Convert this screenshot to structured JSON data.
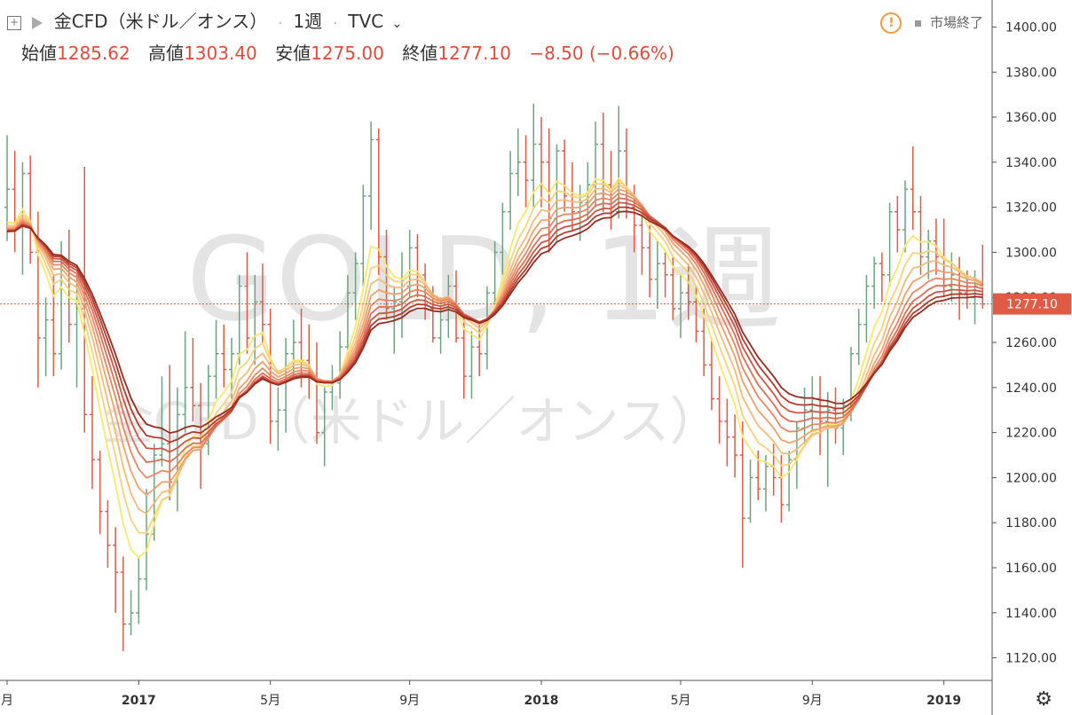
{
  "header": {
    "symbol_name": "金CFD（米ドル／オンス）",
    "interval": "1週",
    "exchange": "TVC",
    "status": "市場終了",
    "add_icon": "plus-square-icon",
    "flag_icon": "flag-icon",
    "warning_icon": "warning-icon",
    "settings_icon": "gear-icon"
  },
  "ohlc": {
    "open_label": "始値",
    "open": "1285.62",
    "high_label": "高値",
    "high": "1303.40",
    "low_label": "安値",
    "low": "1275.00",
    "close_label": "終値",
    "close": "1277.10",
    "change": "−8.50 (−0.66%)"
  },
  "watermark": {
    "line1": "GOLD, 1週",
    "line2": "金CFD（米ドル／オンス）"
  },
  "colors": {
    "up": "#6aa57f",
    "down": "#e05a45",
    "ohlc_text": "#e04b3a",
    "price_label_bg": "#e05a45",
    "ribbon": [
      "#fbe66e",
      "#f8d27a",
      "#f5bb78",
      "#f0a06c",
      "#ea8763",
      "#e06d55",
      "#cf5442",
      "#b43a2c",
      "#9a2a20"
    ]
  },
  "chart_data": {
    "type": "line",
    "title": "金CFD（米ドル／オンス）",
    "series_type": "ohlc-bars with moving-average ribbon",
    "ylim": [
      1110,
      1412
    ],
    "y_ticks": [
      1120,
      1140,
      1160,
      1180,
      1200,
      1220,
      1240,
      1260,
      1280,
      1300,
      1320,
      1340,
      1360,
      1380,
      1400
    ],
    "y_tick_labels": [
      "1120.00",
      "1140.00",
      "1160.00",
      "1180.00",
      "1200.00",
      "1220.00",
      "1240.00",
      "1260.00",
      "1280.00",
      "1300.00",
      "1320.00",
      "1340.00",
      "1360.00",
      "1380.00",
      "1400.00"
    ],
    "x_ticks": [
      {
        "i": 0,
        "label": "月",
        "bold": false
      },
      {
        "i": 17,
        "label": "2017",
        "bold": true
      },
      {
        "i": 34,
        "label": "5月",
        "bold": false
      },
      {
        "i": 52,
        "label": "9月",
        "bold": false
      },
      {
        "i": 69,
        "label": "2018",
        "bold": true
      },
      {
        "i": 87,
        "label": "5月",
        "bold": false
      },
      {
        "i": 104,
        "label": "9月",
        "bold": false
      },
      {
        "i": 121,
        "label": "2019",
        "bold": true
      },
      {
        "i": 139,
        "label": "5月",
        "bold": false
      }
    ],
    "last_price": 1277.1,
    "last_price_label": "1277.10",
    "bars": [
      [
        1320,
        1352,
        1305,
        1328
      ],
      [
        1328,
        1345,
        1300,
        1312
      ],
      [
        1312,
        1340,
        1290,
        1335
      ],
      [
        1335,
        1343,
        1295,
        1300
      ],
      [
        1300,
        1318,
        1240,
        1262
      ],
      [
        1262,
        1280,
        1245,
        1270
      ],
      [
        1270,
        1290,
        1245,
        1255
      ],
      [
        1255,
        1305,
        1248,
        1295
      ],
      [
        1295,
        1310,
        1260,
        1268
      ],
      [
        1268,
        1290,
        1240,
        1275
      ],
      [
        1275,
        1338,
        1220,
        1228
      ],
      [
        1228,
        1245,
        1195,
        1208
      ],
      [
        1208,
        1212,
        1175,
        1185
      ],
      [
        1185,
        1190,
        1160,
        1170
      ],
      [
        1170,
        1178,
        1140,
        1158
      ],
      [
        1158,
        1165,
        1123,
        1135
      ],
      [
        1135,
        1150,
        1130,
        1140
      ],
      [
        1140,
        1165,
        1135,
        1155
      ],
      [
        1155,
        1195,
        1150,
        1175
      ],
      [
        1175,
        1215,
        1172,
        1210
      ],
      [
        1210,
        1245,
        1205,
        1215
      ],
      [
        1215,
        1250,
        1190,
        1198
      ],
      [
        1198,
        1240,
        1185,
        1228
      ],
      [
        1228,
        1265,
        1220,
        1240
      ],
      [
        1240,
        1262,
        1225,
        1232
      ],
      [
        1232,
        1242,
        1195,
        1215
      ],
      [
        1215,
        1250,
        1210,
        1245
      ],
      [
        1245,
        1270,
        1235,
        1255
      ],
      [
        1255,
        1268,
        1240,
        1248
      ],
      [
        1248,
        1262,
        1235,
        1255
      ],
      [
        1255,
        1290,
        1250,
        1285
      ],
      [
        1285,
        1300,
        1255,
        1262
      ],
      [
        1262,
        1290,
        1250,
        1278
      ],
      [
        1278,
        1295,
        1260,
        1268
      ],
      [
        1268,
        1275,
        1215,
        1225
      ],
      [
        1225,
        1240,
        1212,
        1230
      ],
      [
        1230,
        1262,
        1220,
        1255
      ],
      [
        1255,
        1270,
        1245,
        1260
      ],
      [
        1260,
        1275,
        1240,
        1252
      ],
      [
        1252,
        1268,
        1235,
        1245
      ],
      [
        1245,
        1260,
        1215,
        1220
      ],
      [
        1220,
        1240,
        1205,
        1238
      ],
      [
        1238,
        1250,
        1230,
        1242
      ],
      [
        1242,
        1265,
        1235,
        1258
      ],
      [
        1258,
        1290,
        1250,
        1282
      ],
      [
        1282,
        1300,
        1270,
        1295
      ],
      [
        1295,
        1330,
        1285,
        1325
      ],
      [
        1325,
        1358,
        1310,
        1350
      ],
      [
        1350,
        1355,
        1290,
        1298
      ],
      [
        1298,
        1310,
        1270,
        1275
      ],
      [
        1275,
        1285,
        1255,
        1278
      ],
      [
        1278,
        1300,
        1262,
        1285
      ],
      [
        1285,
        1310,
        1280,
        1302
      ],
      [
        1302,
        1308,
        1280,
        1290
      ],
      [
        1290,
        1295,
        1270,
        1275
      ],
      [
        1275,
        1285,
        1260,
        1262
      ],
      [
        1262,
        1280,
        1255,
        1270
      ],
      [
        1270,
        1290,
        1262,
        1285
      ],
      [
        1285,
        1292,
        1260,
        1262
      ],
      [
        1262,
        1272,
        1235,
        1245
      ],
      [
        1245,
        1265,
        1235,
        1258
      ],
      [
        1258,
        1268,
        1245,
        1255
      ],
      [
        1255,
        1285,
        1248,
        1282
      ],
      [
        1282,
        1305,
        1275,
        1300
      ],
      [
        1300,
        1322,
        1290,
        1318
      ],
      [
        1318,
        1345,
        1310,
        1335
      ],
      [
        1335,
        1355,
        1325,
        1340
      ],
      [
        1340,
        1352,
        1320,
        1332
      ],
      [
        1332,
        1366,
        1320,
        1348
      ],
      [
        1348,
        1360,
        1320,
        1340
      ],
      [
        1340,
        1355,
        1300,
        1315
      ],
      [
        1315,
        1348,
        1305,
        1345
      ],
      [
        1345,
        1350,
        1318,
        1325
      ],
      [
        1325,
        1340,
        1310,
        1318
      ],
      [
        1318,
        1330,
        1305,
        1322
      ],
      [
        1322,
        1340,
        1315,
        1330
      ],
      [
        1330,
        1358,
        1320,
        1348
      ],
      [
        1348,
        1362,
        1318,
        1330
      ],
      [
        1330,
        1345,
        1310,
        1318
      ],
      [
        1318,
        1365,
        1315,
        1345
      ],
      [
        1345,
        1355,
        1315,
        1320
      ],
      [
        1320,
        1330,
        1300,
        1312
      ],
      [
        1312,
        1320,
        1290,
        1302
      ],
      [
        1302,
        1312,
        1280,
        1288
      ],
      [
        1288,
        1305,
        1275,
        1295
      ],
      [
        1295,
        1300,
        1280,
        1290
      ],
      [
        1290,
        1298,
        1270,
        1275
      ],
      [
        1275,
        1290,
        1262,
        1282
      ],
      [
        1282,
        1295,
        1270,
        1278
      ],
      [
        1278,
        1285,
        1260,
        1265
      ],
      [
        1265,
        1275,
        1245,
        1250
      ],
      [
        1250,
        1262,
        1230,
        1235
      ],
      [
        1235,
        1245,
        1215,
        1225
      ],
      [
        1225,
        1235,
        1205,
        1218
      ],
      [
        1218,
        1228,
        1200,
        1210
      ],
      [
        1210,
        1225,
        1160,
        1182
      ],
      [
        1182,
        1208,
        1180,
        1200
      ],
      [
        1200,
        1212,
        1190,
        1195
      ],
      [
        1195,
        1210,
        1185,
        1205
      ],
      [
        1205,
        1215,
        1192,
        1200
      ],
      [
        1200,
        1210,
        1180,
        1188
      ],
      [
        1188,
        1212,
        1185,
        1208
      ],
      [
        1208,
        1225,
        1195,
        1222
      ],
      [
        1222,
        1240,
        1215,
        1230
      ],
      [
        1230,
        1245,
        1220,
        1235
      ],
      [
        1235,
        1245,
        1210,
        1225
      ],
      [
        1225,
        1238,
        1196,
        1230
      ],
      [
        1230,
        1240,
        1215,
        1222
      ],
      [
        1222,
        1235,
        1210,
        1232
      ],
      [
        1232,
        1258,
        1225,
        1255
      ],
      [
        1255,
        1275,
        1250,
        1268
      ],
      [
        1268,
        1290,
        1260,
        1285
      ],
      [
        1285,
        1298,
        1275,
        1295
      ],
      [
        1295,
        1300,
        1278,
        1290
      ],
      [
        1290,
        1322,
        1285,
        1318
      ],
      [
        1318,
        1325,
        1300,
        1310
      ],
      [
        1310,
        1332,
        1300,
        1328
      ],
      [
        1328,
        1347,
        1310,
        1318
      ],
      [
        1318,
        1325,
        1290,
        1298
      ],
      [
        1298,
        1310,
        1288,
        1305
      ],
      [
        1305,
        1315,
        1290,
        1298
      ],
      [
        1298,
        1315,
        1280,
        1285
      ],
      [
        1285,
        1300,
        1278,
        1290
      ],
      [
        1290,
        1298,
        1270,
        1282
      ],
      [
        1282,
        1292,
        1275,
        1280
      ],
      [
        1280,
        1292,
        1268,
        1285
      ],
      [
        1285.62,
        1303.4,
        1275,
        1277.1
      ]
    ]
  }
}
